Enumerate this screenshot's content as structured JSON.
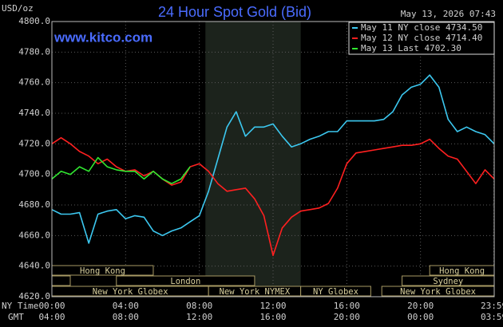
{
  "chart_data": {
    "type": "line",
    "title": "24 Hour Spot Gold (Bid)",
    "subtitle": "www.kitco.com",
    "ylabel": "USD/oz",
    "timestamp": "May 13, 2026 07:43",
    "xlabels": [
      "NY Time",
      "GMT"
    ],
    "x": [
      0,
      0.5,
      1,
      1.5,
      2,
      2.5,
      3,
      3.5,
      4,
      4.5,
      5,
      5.5,
      6,
      6.5,
      7,
      7.5,
      8,
      8.5,
      9,
      9.5,
      10,
      10.5,
      11,
      11.5,
      12,
      12.5,
      13,
      13.5,
      14,
      14.5,
      15,
      15.5,
      16,
      16.5,
      17,
      17.5,
      18,
      18.5,
      19,
      19.5,
      20,
      20.5,
      21,
      21.5,
      22,
      22.5,
      23,
      23.5,
      24
    ],
    "xlim": [
      0,
      24
    ],
    "xticks": [
      {
        "value": 0,
        "label": "00:00"
      },
      {
        "value": 4,
        "label": "04:00"
      },
      {
        "value": 8,
        "label": "08:00"
      },
      {
        "value": 12,
        "label": "12:00"
      },
      {
        "value": 16,
        "label": "16:00"
      },
      {
        "value": 20,
        "label": "20:00"
      },
      {
        "value": 23.98,
        "label": "23:59"
      }
    ],
    "gmt_labels": [
      "04:00",
      "08:00",
      "12:00",
      "16:00",
      "20:00",
      "00:00",
      "03:59"
    ],
    "ylim": [
      4620,
      4800
    ],
    "yticks": [
      {
        "value": 4620,
        "label": "4620.0"
      },
      {
        "value": 4640,
        "label": "4640.0"
      },
      {
        "value": 4660,
        "label": "4660.0"
      },
      {
        "value": 4680,
        "label": "4680.0"
      },
      {
        "value": 4700,
        "label": "4700.0"
      },
      {
        "value": 4720,
        "label": "4720.0"
      },
      {
        "value": 4740,
        "label": "4740.0"
      },
      {
        "value": 4760,
        "label": "4760.0"
      },
      {
        "value": 4780,
        "label": "4780.0"
      },
      {
        "value": 4800,
        "label": "4800.0"
      }
    ],
    "grid": true,
    "shade": [
      8.33,
      13.5
    ],
    "series": [
      {
        "name": "May 11 NY close 4734.50",
        "color": "#3cc8f0",
        "values": [
          4677,
          4674,
          4674,
          4675,
          4655,
          4674,
          4676,
          4677,
          4671,
          4673,
          4672,
          4663,
          4660,
          4663,
          4665,
          4669,
          4673,
          4689,
          4710,
          4731,
          4741,
          4725,
          4731,
          4731,
          4733,
          4725,
          4718,
          4720,
          4723,
          4725,
          4728,
          4728,
          4735,
          4735,
          4735,
          4735,
          4736,
          4741,
          4752,
          4757,
          4759,
          4765,
          4757,
          4736,
          4728,
          4731,
          4728,
          4726,
          4720
        ]
      },
      {
        "name": "May 12 NY close 4714.40",
        "color": "#ff2020",
        "values": [
          4720,
          4724,
          4720,
          4715,
          4712,
          4707,
          4710,
          4705,
          4702,
          4703,
          4699,
          4702,
          4697,
          4693,
          4695,
          4705,
          4707,
          4702,
          4694,
          4689,
          4690,
          4691,
          4684,
          4673,
          4647,
          4665,
          4672,
          4676,
          4677,
          4678,
          4681,
          4691,
          4707,
          4714,
          4715,
          4716,
          4717,
          4718,
          4719,
          4719,
          4720,
          4723,
          4717,
          4712,
          4710,
          4702,
          4694,
          4703,
          4697
        ]
      },
      {
        "name": "May 13 Last 4702.30",
        "color": "#30e830",
        "values": [
          4697,
          4702,
          4700,
          4705,
          4702,
          4711,
          4705,
          4703,
          4702,
          4702,
          4697,
          4702,
          4697,
          4694,
          4697,
          4705,
          null,
          null,
          null,
          null,
          null,
          null,
          null,
          null,
          null,
          null,
          null,
          null,
          null,
          null,
          null,
          null,
          null,
          null,
          null,
          null,
          null,
          null,
          null,
          null,
          null,
          null,
          null,
          null,
          null,
          null,
          null,
          null,
          null
        ]
      }
    ],
    "session_rows": [
      [
        {
          "name": "Hong Kong",
          "start": 0,
          "end": 5.5
        },
        {
          "name": "Hong Kong",
          "start": 20.5,
          "end": 24
        }
      ],
      [
        {
          "name": "London",
          "start": 3.5,
          "end": 11
        },
        {
          "name": "Sydney",
          "start": 19,
          "end": 24
        }
      ],
      [
        {
          "name": "New York Globex",
          "start": 0,
          "end": 8.5
        },
        {
          "name": "New York NYMEX",
          "start": 8.5,
          "end": 13.5
        },
        {
          "name": "NY Globex",
          "start": 13.5,
          "end": 17.3
        },
        {
          "name": "New York Globex",
          "start": 17.9,
          "end": 24
        }
      ]
    ]
  }
}
